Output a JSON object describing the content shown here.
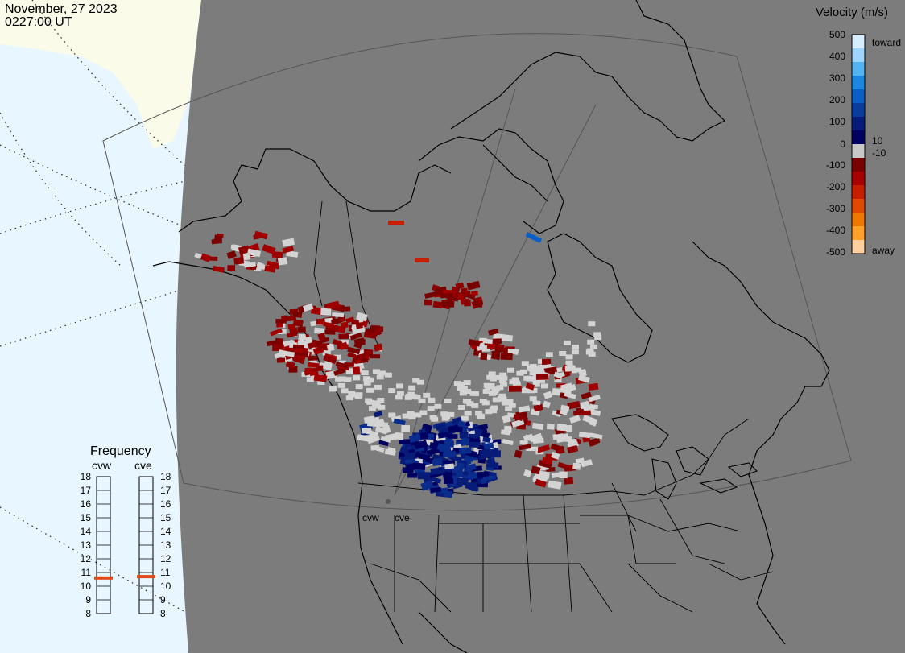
{
  "header": {
    "date": "November, 27 2023",
    "time": "0227:00 UT"
  },
  "colors": {
    "map_background": "#7c7c7c",
    "ocean": "#e8f6ff",
    "land_outside": "#fbfbea",
    "ground_scatter": "#d3d3d3",
    "outline": "#000000"
  },
  "velocity_scale": {
    "title": "Velocity (m/s)",
    "tick_labels": [
      "500",
      "400",
      "300",
      "200",
      "100",
      "10",
      "0",
      "-10",
      "-100",
      "-200",
      "-300",
      "-400",
      "-500"
    ],
    "toward_label": "toward",
    "away_label": "away",
    "colors_top_to_bottom": [
      "#d6ecff",
      "#9fd4ff",
      "#55b3f2",
      "#1c87e0",
      "#0b5ec5",
      "#0a3c9c",
      "#071c78",
      "#000060",
      "#c8c8c8",
      "#7a0000",
      "#a80000",
      "#c81e00",
      "#e04a00",
      "#f07800",
      "#ffa02a",
      "#ffcfa0"
    ]
  },
  "frequency": {
    "title": "Frequency",
    "radars": [
      {
        "label": "cvw",
        "value": 10.6
      },
      {
        "label": "cve",
        "value": 10.7
      }
    ],
    "ticks": [
      "18",
      "17",
      "16",
      "15",
      "14",
      "13",
      "12",
      "11",
      "10",
      "9",
      "8"
    ]
  },
  "radar_sites": [
    {
      "label": "cvw"
    },
    {
      "label": "cve"
    }
  ]
}
